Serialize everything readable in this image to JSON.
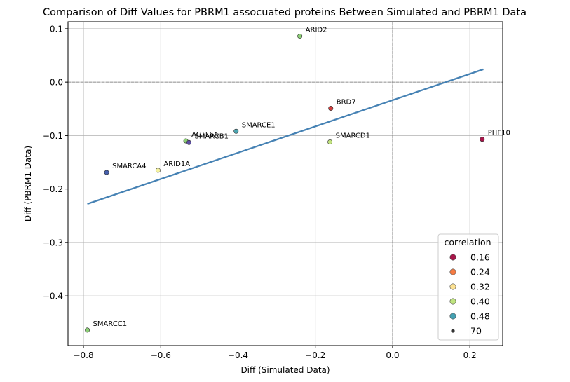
{
  "chart_data": {
    "type": "scatter",
    "title": "Comparison of Diff Values for PBRM1 assocuated proteins Between Simulated and PBRM1 Data",
    "xlabel": "Diff (Simulated Data)",
    "ylabel": "Diff (PBRM1 Data)",
    "xlim": [
      -0.84,
      0.285
    ],
    "ylim": [
      -0.493,
      0.113
    ],
    "x_ticks": [
      -0.8,
      -0.6,
      -0.4,
      -0.2,
      0.0,
      0.2
    ],
    "x_tick_labels": [
      "−0.8",
      "−0.6",
      "−0.4",
      "−0.2",
      "0.0",
      "0.2"
    ],
    "y_ticks": [
      0.1,
      0.0,
      -0.1,
      -0.2,
      -0.3,
      -0.4
    ],
    "y_tick_labels": [
      "0.1",
      "0.0",
      "−0.1",
      "−0.2",
      "−0.3",
      "−0.4"
    ],
    "grid": true,
    "reference_lines": {
      "x": 0,
      "y": 0
    },
    "points": [
      {
        "label": "ARID2",
        "x": -0.24,
        "y": 0.086,
        "color": "#8ccf76"
      },
      {
        "label": "BRD7",
        "x": -0.16,
        "y": -0.049,
        "color": "#d53e3e"
      },
      {
        "label": "PHF10",
        "x": 0.232,
        "y": -0.107,
        "color": "#a8164a"
      },
      {
        "label": "SMARCE1",
        "x": -0.405,
        "y": -0.092,
        "color": "#4ba4b0"
      },
      {
        "label": "SMARCD1",
        "x": -0.162,
        "y": -0.112,
        "color": "#c1e27f"
      },
      {
        "label": "ACTL6A",
        "x": -0.535,
        "y": -0.11,
        "color": "#8ccf76"
      },
      {
        "label": "SMARCB1",
        "x": -0.527,
        "y": -0.113,
        "color": "#5e4fa2"
      },
      {
        "label": "ARID1A",
        "x": -0.607,
        "y": -0.165,
        "color": "#f5f3a0"
      },
      {
        "label": "SMARCA4",
        "x": -0.74,
        "y": -0.169,
        "color": "#4760ad"
      },
      {
        "label": "SMARCC1",
        "x": -0.79,
        "y": -0.464,
        "color": "#8ccf76"
      }
    ],
    "fit_line": {
      "x": [
        -0.79,
        0.235
      ],
      "y": [
        -0.228,
        0.024
      ],
      "color": "#4682b4"
    },
    "legend": {
      "title": "correlation",
      "position": "lower-right",
      "entries": [
        {
          "label": "0.16",
          "color": "#a8164a"
        },
        {
          "label": "0.24",
          "color": "#f57c44"
        },
        {
          "label": "0.32",
          "color": "#fde293"
        },
        {
          "label": "0.40",
          "color": "#bfe47f"
        },
        {
          "label": "0.48",
          "color": "#45a1b2"
        }
      ],
      "size_entry": {
        "label": "70",
        "color": "#333333"
      }
    }
  }
}
